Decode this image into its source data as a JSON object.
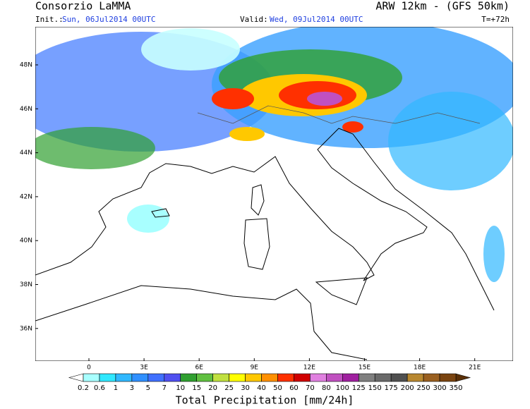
{
  "header": {
    "title": "Consorzio LaMMA",
    "model": "ARW 12km - (GFS 50km)",
    "init_label": "Init.:",
    "init": "Sun, 06Jul2014 00UTC",
    "valid_label": "Valid:",
    "valid": "Wed, 09Jul2014 00UTC",
    "lead": "T=+72h"
  },
  "map": {
    "lat_labels": [
      "48N",
      "46N",
      "44N",
      "42N",
      "40N",
      "38N",
      "36N"
    ],
    "lon_labels": [
      "0",
      "3E",
      "6E",
      "9E",
      "12E",
      "15E",
      "18E",
      "21E"
    ]
  },
  "legend": {
    "title": "Total Precipitation [mm/24h]",
    "levels": [
      0.2,
      0.6,
      1,
      3,
      5,
      7,
      10,
      15,
      20,
      25,
      30,
      40,
      50,
      60,
      70,
      80,
      100,
      125,
      150,
      175,
      200,
      250,
      300,
      350
    ],
    "under_color": "#ffffff",
    "over_color": "#5a3008",
    "colors": [
      "#a8ffff",
      "#30e8ff",
      "#30b8ff",
      "#3090ff",
      "#4070ff",
      "#5050f0",
      "#30a030",
      "#60c040",
      "#c0e040",
      "#ffff00",
      "#ffc800",
      "#ff9000",
      "#ff3000",
      "#d00000",
      "#e080e0",
      "#c050c0",
      "#a020a0",
      "#808080",
      "#6a6a6a",
      "#505050",
      "#b88830",
      "#9a6020",
      "#7a4410"
    ]
  }
}
